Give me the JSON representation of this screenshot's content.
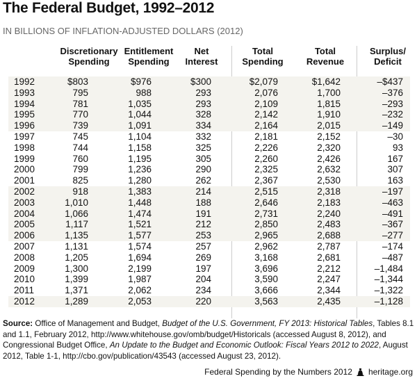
{
  "title": "The Federal Budget, 1992–2012",
  "subtitle": "IN BILLIONS OF INFLATION-ADJUSTED DOLLARS (2012)",
  "headers": [
    [
      "Discretionary",
      "Spending"
    ],
    [
      "Entitlement",
      "Spending"
    ],
    [
      "Net",
      "Interest"
    ],
    [
      "Total",
      "Spending"
    ],
    [
      "Total",
      "Revenue"
    ],
    [
      "Surplus/",
      "Deficit"
    ]
  ],
  "rows": [
    [
      "1992",
      "$803",
      "$976",
      "$300",
      "$2,079",
      "$1,642",
      "–$437"
    ],
    [
      "1993",
      "795",
      "988",
      "293",
      "2,076",
      "1,700",
      "–376"
    ],
    [
      "1994",
      "781",
      "1,035",
      "293",
      "2,109",
      "1,815",
      "–293"
    ],
    [
      "1995",
      "770",
      "1,044",
      "328",
      "2,142",
      "1,910",
      "–232"
    ],
    [
      "1996",
      "739",
      "1,091",
      "334",
      "2,164",
      "2,015",
      "–149"
    ],
    [
      "1997",
      "745",
      "1,104",
      "332",
      "2,181",
      "2,152",
      "–30"
    ],
    [
      "1998",
      "744",
      "1,158",
      "325",
      "2,226",
      "2,320",
      "93"
    ],
    [
      "1999",
      "760",
      "1,195",
      "305",
      "2,260",
      "2,426",
      "167"
    ],
    [
      "2000",
      "799",
      "1,236",
      "290",
      "2,325",
      "2,632",
      "307"
    ],
    [
      "2001",
      "825",
      "1,280",
      "262",
      "2,367",
      "2,530",
      "163"
    ],
    [
      "2002",
      "918",
      "1,383",
      "214",
      "2,515",
      "2,318",
      "–197"
    ],
    [
      "2003",
      "1,010",
      "1,448",
      "188",
      "2,646",
      "2,183",
      "–463"
    ],
    [
      "2004",
      "1,066",
      "1,474",
      "191",
      "2,731",
      "2,240",
      "–491"
    ],
    [
      "2005",
      "1,117",
      "1,521",
      "212",
      "2,850",
      "2,483",
      "–367"
    ],
    [
      "2006",
      "1,135",
      "1,577",
      "253",
      "2,965",
      "2,688",
      "–277"
    ],
    [
      "2007",
      "1,131",
      "1,574",
      "257",
      "2,962",
      "2,787",
      "–174"
    ],
    [
      "2008",
      "1,205",
      "1,694",
      "269",
      "3,168",
      "2,681",
      "–487"
    ],
    [
      "2009",
      "1,300",
      "2,199",
      "197",
      "3,696",
      "2,212",
      "–1,484"
    ],
    [
      "2010",
      "1,399",
      "1,987",
      "204",
      "3,590",
      "2,247",
      "–1,344"
    ],
    [
      "2011",
      "1,371",
      "2,062",
      "234",
      "3,666",
      "2,344",
      "–1,322"
    ],
    [
      "2012",
      "1,289",
      "2,053",
      "220",
      "3,563",
      "2,435",
      "–1,128"
    ]
  ],
  "shaded_rows": [
    0,
    1,
    2,
    3,
    4,
    10,
    11,
    12,
    13,
    14,
    20
  ],
  "source": {
    "label": "Source:",
    "p1": " Office of Management and Budget, ",
    "i1": "Budget of the U.S. Government, FY 2013: Historical Tables",
    "p2": ", Tables 8.1 and 1.1, February 2012, http://www.whitehouse.gov/omb/budget/Historicals (accessed August 8, 2012), and Congressional Budget Office, ",
    "i2": "An Update to the Budget and Economic Outlook: Fiscal Years 2012 to 2022",
    "p3": ", August 2012, Table 1-1, http://cbo.gov/publication/43543 (accessed August 23, 2012)."
  },
  "footer": {
    "publication": "Federal Spending by the Numbers 2012",
    "site": "heritage.org"
  },
  "colors": {
    "shade": "#f4f3ee",
    "divider": "#cccccc",
    "subtitle": "#666666"
  }
}
